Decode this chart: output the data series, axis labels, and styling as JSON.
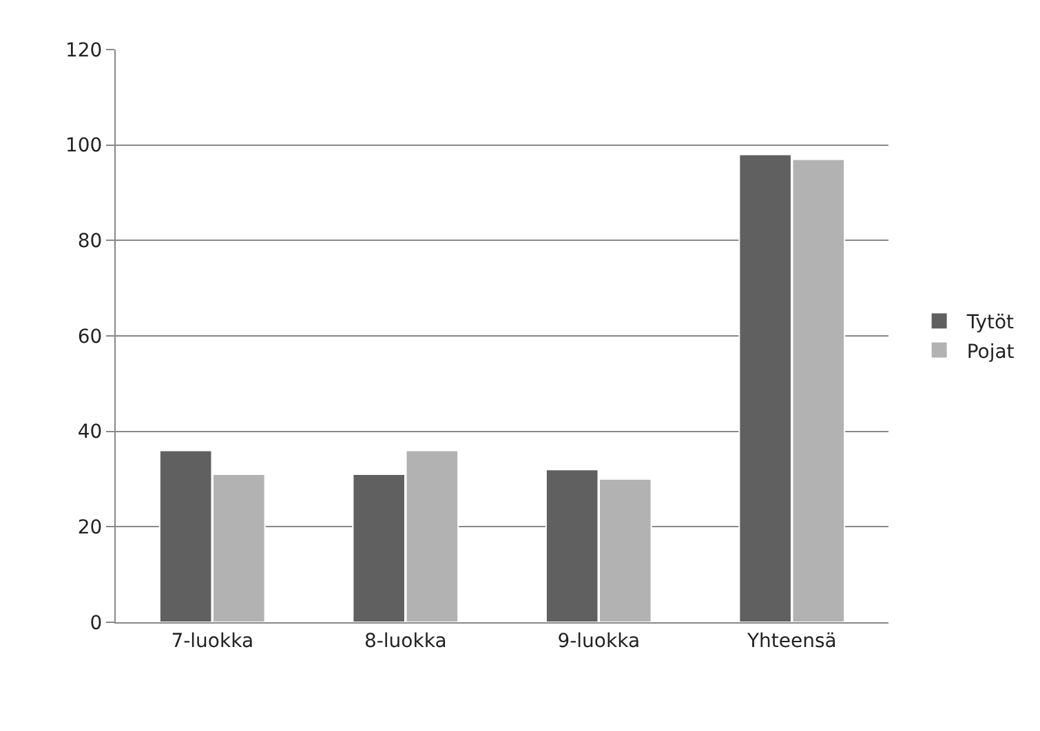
{
  "chart_data": {
    "type": "bar",
    "categories": [
      "7-luokka",
      "8-luokka",
      "9-luokka",
      "Yhteensä"
    ],
    "series": [
      {
        "name": "Tytöt",
        "color": "#606060",
        "values": [
          36,
          31,
          32,
          98
        ]
      },
      {
        "name": "Pojat",
        "color": "#b2b2b2",
        "values": [
          31,
          36,
          30,
          97
        ]
      }
    ],
    "ylim": [
      0,
      120
    ],
    "yticks": [
      0,
      20,
      40,
      60,
      80,
      100,
      120
    ],
    "grid": "y",
    "legend": "right"
  }
}
